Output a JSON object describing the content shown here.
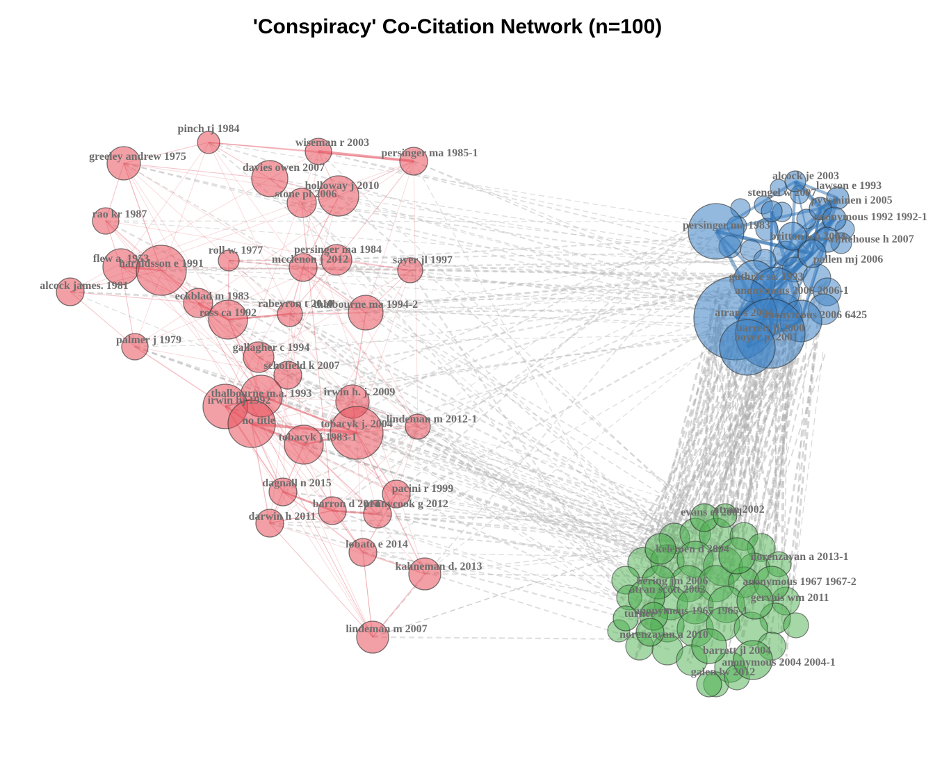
{
  "title": "'Conspiracy' Co-Citation Network (n=100)",
  "clusters": [
    {
      "id": 1,
      "color": "#e8505b",
      "edge_color": "#e35a66"
    },
    {
      "id": 2,
      "color": "#3a7fc3",
      "edge_color": "#2f6faf"
    },
    {
      "id": 3,
      "color": "#4caf50",
      "edge_color": "#2e8b3a"
    }
  ],
  "nodes": [
    {
      "label": "pinch tj 1984",
      "cluster": 1
    },
    {
      "label": "greeley andrew 1975",
      "cluster": 1
    },
    {
      "label": "wiseman r 2003",
      "cluster": 1
    },
    {
      "label": "persinger ma 1985-1",
      "cluster": 1
    },
    {
      "label": "davies owen 2007",
      "cluster": 1
    },
    {
      "label": "stone pl 2006",
      "cluster": 1
    },
    {
      "label": "holloway j 2010",
      "cluster": 1
    },
    {
      "label": "rao kr 1987",
      "cluster": 1
    },
    {
      "label": "flew a. 1953",
      "cluster": 1
    },
    {
      "label": "haraldsson e 1991",
      "cluster": 1
    },
    {
      "label": "roll w. 1977",
      "cluster": 1
    },
    {
      "label": "persinger ma 1984",
      "cluster": 1
    },
    {
      "label": "mcclenon j 2012",
      "cluster": 1
    },
    {
      "label": "sayer jl 1997",
      "cluster": 1
    },
    {
      "label": "alcock james. 1981",
      "cluster": 1
    },
    {
      "label": "eckblad m 1983",
      "cluster": 1
    },
    {
      "label": "thalbourne ma 1994-2",
      "cluster": 1
    },
    {
      "label": "ross ca 1992",
      "cluster": 1
    },
    {
      "label": "rabeyron t 2010",
      "cluster": 1
    },
    {
      "label": "palmer j 1979",
      "cluster": 1
    },
    {
      "label": "gallagher c 1994",
      "cluster": 1
    },
    {
      "label": "schofield k 2007",
      "cluster": 1
    },
    {
      "label": "thalbourne m.a. 1993",
      "cluster": 1
    },
    {
      "label": "irwin h. j. 2009",
      "cluster": 1
    },
    {
      "label": "irwin hj 1992",
      "cluster": 1
    },
    {
      "label": "no title",
      "cluster": 1
    },
    {
      "label": "tobacyk j. 2004",
      "cluster": 1
    },
    {
      "label": "lindeman m 2012-1",
      "cluster": 1
    },
    {
      "label": "tobacyk j 1983-1",
      "cluster": 1
    },
    {
      "label": "dagnall n 2015",
      "cluster": 1
    },
    {
      "label": "pacini r 1999",
      "cluster": 1
    },
    {
      "label": "barron d 2014",
      "cluster": 1
    },
    {
      "label": "pennycook g 2012",
      "cluster": 1
    },
    {
      "label": "darwin h 2011",
      "cluster": 1
    },
    {
      "label": "lobato e 2014",
      "cluster": 1
    },
    {
      "label": "kahneman d. 2013",
      "cluster": 1
    },
    {
      "label": "lindeman m 2007",
      "cluster": 1
    },
    {
      "label": "alcock je 2003",
      "cluster": 2
    },
    {
      "label": "lawson e 1993",
      "cluster": 2
    },
    {
      "label": "stengel w 2007",
      "cluster": 2
    },
    {
      "label": "pyysiainen i 2005",
      "cluster": 2
    },
    {
      "label": "anonymous 1992 1992-1",
      "cluster": 2
    },
    {
      "label": "persinger ma 1983",
      "cluster": 2
    },
    {
      "label": "britton wb 2004",
      "cluster": 2
    },
    {
      "label": "whitehouse h 2007",
      "cluster": 2
    },
    {
      "label": "pallen mj 2006",
      "cluster": 2
    },
    {
      "label": "guthrie se. 1993",
      "cluster": 2
    },
    {
      "label": "anonymous 2006 2006-1",
      "cluster": 2
    },
    {
      "label": "atran s 2004",
      "cluster": 2
    },
    {
      "label": "anonymous 2006 6425",
      "cluster": 2
    },
    {
      "label": "barrett jl 2000",
      "cluster": 2
    },
    {
      "label": "boyer p. 2001",
      "cluster": 2
    },
    {
      "label": "evans el 2001",
      "cluster": 3
    },
    {
      "label": "atran 2002",
      "cluster": 3
    },
    {
      "label": "kelemen d 2004",
      "cluster": 3
    },
    {
      "label": "norenzayan a 2013-1",
      "cluster": 3
    },
    {
      "label": "bering jm 2006",
      "cluster": 3
    },
    {
      "label": "anonymous 1967 1967-2",
      "cluster": 3
    },
    {
      "label": "atran scott 2002",
      "cluster": 3
    },
    {
      "label": "gervais wm 2011",
      "cluster": 3
    },
    {
      "label": "anonymous 1965 1965-1",
      "cluster": 3
    },
    {
      "label": "turner",
      "cluster": 3
    },
    {
      "label": "norenzayan a 2010",
      "cluster": 3
    },
    {
      "label": "barrett jl 2004",
      "cluster": 3
    },
    {
      "label": "anonymous 2004 2004-1",
      "cluster": 3
    },
    {
      "label": "galen lw 2012",
      "cluster": 3
    }
  ]
}
